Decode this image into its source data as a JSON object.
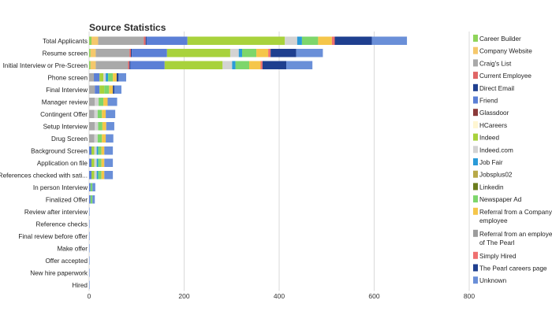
{
  "chart_data": {
    "type": "bar",
    "orientation": "horizontal",
    "stacked": true,
    "title": "Source Statistics",
    "xlabel": "",
    "ylabel": "",
    "xlim": [
      0,
      800
    ],
    "xticks": [
      0,
      200,
      400,
      600,
      800
    ],
    "grid": true,
    "legend_position": "right",
    "categories": [
      "Total Applicants",
      "Resume screen",
      "Initial Interview or Pre-Screen",
      "Phone screen",
      "Final Interview",
      "Manager review",
      "Contingent Offer",
      "Setup Interview",
      "Drug Screen",
      "Background Screen",
      "Application on file",
      "References checked with sati...",
      "In person Interview",
      "Finalized Offer",
      "Review after interview",
      "Reference checks",
      "Final review before offer",
      "Make offer",
      "Offer accepted",
      "New hire paperwork",
      "Hired"
    ],
    "series": [
      {
        "name": "Career Builder",
        "color": "#8fd45a",
        "values": [
          5,
          3,
          3,
          0,
          0,
          0,
          0,
          0,
          0,
          0,
          0,
          0,
          0,
          0,
          0,
          0,
          0,
          0,
          0,
          0,
          0
        ]
      },
      {
        "name": "Company Website",
        "color": "#f5c86b",
        "values": [
          14,
          11,
          11,
          0,
          0,
          0,
          0,
          0,
          0,
          0,
          0,
          0,
          0,
          0,
          0,
          0,
          0,
          0,
          0,
          0,
          0
        ]
      },
      {
        "name": "Craig's List",
        "color": "#a9a9a9",
        "values": [
          96,
          71,
          68,
          10,
          12,
          12,
          11,
          12,
          11,
          0,
          0,
          0,
          0,
          0,
          0,
          0,
          0,
          0,
          0,
          0,
          0
        ]
      },
      {
        "name": "Current Employee",
        "color": "#e06666",
        "values": [
          4,
          3,
          3,
          0,
          0,
          0,
          0,
          0,
          0,
          0,
          0,
          0,
          0,
          0,
          0,
          0,
          0,
          0,
          0,
          0,
          0
        ]
      },
      {
        "name": "Direct Email",
        "color": "#1f3f8f",
        "values": [
          2,
          2,
          2,
          0,
          0,
          0,
          0,
          0,
          0,
          0,
          0,
          0,
          0,
          0,
          0,
          0,
          0,
          0,
          0,
          0,
          0
        ]
      },
      {
        "name": "Friend",
        "color": "#5b7fd6",
        "values": [
          86,
          74,
          72,
          12,
          10,
          0,
          0,
          0,
          0,
          5,
          5,
          5,
          3,
          3,
          0,
          0,
          0,
          0,
          0,
          0,
          0
        ]
      },
      {
        "name": "Glassdoor",
        "color": "#8b3a3a",
        "values": [
          0,
          0,
          0,
          0,
          0,
          0,
          0,
          0,
          0,
          0,
          0,
          0,
          0,
          0,
          0,
          0,
          0,
          0,
          0,
          0,
          0
        ]
      },
      {
        "name": "HCareers",
        "color": "#fff6d2",
        "values": [
          0,
          0,
          0,
          0,
          0,
          0,
          0,
          0,
          0,
          0,
          0,
          0,
          0,
          0,
          0,
          0,
          0,
          0,
          0,
          0,
          0
        ]
      },
      {
        "name": "Indeed",
        "color": "#a8d23c",
        "values": [
          205,
          133,
          122,
          8,
          10,
          0,
          0,
          0,
          0,
          6,
          6,
          6,
          0,
          0,
          0,
          0,
          0,
          0,
          0,
          0,
          0
        ]
      },
      {
        "name": "Indeed.com",
        "color": "#d3d3d3",
        "values": [
          26,
          18,
          20,
          5,
          0,
          8,
          7,
          7,
          7,
          5,
          5,
          5,
          0,
          0,
          0,
          0,
          0,
          0,
          0,
          0,
          0
        ]
      },
      {
        "name": "Job Fair",
        "color": "#2a9bd8",
        "values": [
          10,
          7,
          7,
          5,
          0,
          0,
          0,
          0,
          0,
          3,
          3,
          3,
          0,
          0,
          0,
          0,
          0,
          0,
          0,
          0,
          0
        ]
      },
      {
        "name": "Jobsplus02",
        "color": "#b8a948",
        "values": [
          0,
          0,
          0,
          0,
          0,
          0,
          0,
          0,
          0,
          0,
          0,
          0,
          0,
          0,
          0,
          0,
          0,
          0,
          0,
          0,
          0
        ]
      },
      {
        "name": "Linkedin",
        "color": "#6b7d1e",
        "values": [
          0,
          0,
          0,
          0,
          0,
          0,
          0,
          0,
          0,
          0,
          0,
          0,
          0,
          0,
          0,
          0,
          0,
          0,
          0,
          0,
          0
        ]
      },
      {
        "name": "Newspaper Ad",
        "color": "#7dd66b",
        "values": [
          34,
          30,
          29,
          10,
          10,
          10,
          9,
          9,
          9,
          7,
          7,
          7,
          4,
          4,
          0,
          0,
          0,
          0,
          0,
          0,
          0
        ]
      },
      {
        "name": "Referral from a Company employee",
        "color": "#f5c64a",
        "values": [
          29,
          25,
          24,
          8,
          8,
          9,
          8,
          8,
          8,
          6,
          6,
          6,
          0,
          0,
          0,
          0,
          0,
          0,
          0,
          0,
          0
        ]
      },
      {
        "name": "Referral from an employee of The Pearl",
        "color": "#9c9c9c",
        "values": [
          0,
          0,
          0,
          0,
          0,
          0,
          0,
          0,
          0,
          0,
          0,
          0,
          0,
          0,
          0,
          0,
          0,
          0,
          0,
          0,
          0
        ]
      },
      {
        "name": "Simply Hired",
        "color": "#ef7070",
        "values": [
          6,
          5,
          4,
          0,
          0,
          0,
          0,
          0,
          0,
          0,
          0,
          0,
          0,
          0,
          0,
          0,
          0,
          0,
          0,
          0,
          0
        ]
      },
      {
        "name": "The Pearl careers page",
        "color": "#1f3f8f",
        "values": [
          78,
          54,
          50,
          4,
          3,
          0,
          0,
          0,
          0,
          0,
          0,
          0,
          0,
          0,
          0,
          0,
          0,
          0,
          0,
          0,
          0
        ]
      },
      {
        "name": "Unknown",
        "color": "#6a8fd8",
        "values": [
          74,
          56,
          55,
          16,
          15,
          20,
          20,
          17,
          16,
          18,
          18,
          18,
          6,
          5,
          1,
          1,
          1,
          1,
          1,
          1,
          1
        ]
      }
    ]
  }
}
